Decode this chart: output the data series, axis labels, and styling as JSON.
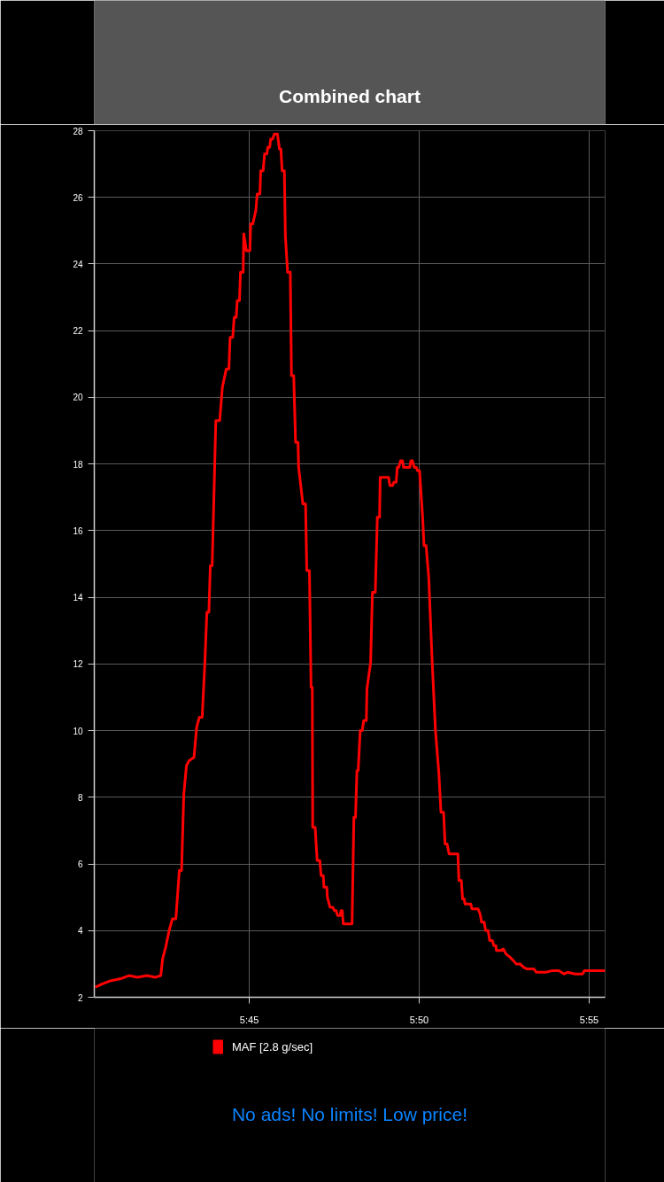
{
  "chart_data": {
    "type": "line",
    "title": "Combined chart",
    "annotations": [
      "No ads! No limits! Low price!"
    ],
    "xlim": [
      5.674,
      5.9245
    ],
    "xticks": [
      {
        "value": 5.75,
        "label": "5:45"
      },
      {
        "value": 5.8333,
        "label": "5:50"
      },
      {
        "value": 5.9167,
        "label": "5:55"
      }
    ],
    "ylim": [
      2,
      28
    ],
    "yticks": [
      2,
      4,
      6,
      8,
      10,
      12,
      14,
      16,
      18,
      20,
      22,
      24,
      26,
      28
    ],
    "grid": true,
    "legend": "bottom",
    "x": [
      5.6745,
      5.678,
      5.6823,
      5.6866,
      5.691,
      5.6953,
      5.6997,
      5.704,
      5.7066,
      5.7075,
      5.709,
      5.7107,
      5.7123,
      5.714,
      5.7157,
      5.7168,
      5.7179,
      5.7192,
      5.7205,
      5.7229,
      5.7242,
      5.7255,
      5.7269,
      5.7282,
      5.7292,
      5.7302,
      5.7309,
      5.7318,
      5.7336,
      5.7355,
      5.7368,
      5.7387,
      5.74,
      5.7406,
      5.7419,
      5.7426,
      5.7436,
      5.7441,
      5.7452,
      5.7457,
      5.747,
      5.7473,
      5.7486,
      5.7503,
      5.7507,
      5.7517,
      5.7532,
      5.7539,
      5.7552,
      5.7556,
      5.7568,
      5.7575,
      5.7586,
      5.7591,
      5.76,
      5.7605,
      5.7614,
      5.7623,
      5.7638,
      5.7648,
      5.7655,
      5.7661,
      5.7672,
      5.7677,
      5.7688,
      5.7701,
      5.7707,
      5.7718,
      5.7727,
      5.7739,
      5.7742,
      5.7763,
      5.7776,
      5.7782,
      5.7795,
      5.7803,
      5.7809,
      5.7811,
      5.7823,
      5.7833,
      5.7846,
      5.7852,
      5.7863,
      5.7866,
      5.788,
      5.7883,
      5.7896,
      5.791,
      5.7917,
      5.7926,
      5.7933,
      5.7945,
      5.795,
      5.7956,
      5.7961,
      5.8004,
      5.8013,
      5.8021,
      5.8028,
      5.8034,
      5.8044,
      5.8054,
      5.8061,
      5.8074,
      5.8077,
      5.8095,
      5.8104,
      5.8118,
      5.8128,
      5.8139,
      5.8142,
      5.8183,
      5.819,
      5.8202,
      5.8209,
      5.822,
      5.8226,
      5.8233,
      5.8242,
      5.8251,
      5.8257,
      5.8287,
      5.8293,
      5.83,
      5.8309,
      5.8319,
      5.8325,
      5.8335,
      5.835,
      5.8357,
      5.8367,
      5.838,
      5.8397,
      5.8413,
      5.843,
      5.844,
      5.8453,
      5.846,
      5.847,
      5.848,
      5.8523,
      5.8528,
      5.854,
      5.8546,
      5.8554,
      5.8558,
      5.8586,
      5.8592,
      5.8622,
      5.8632,
      5.8639,
      5.8652,
      5.8659,
      5.8671,
      5.8679,
      5.8692,
      5.8699,
      5.8709,
      5.8712,
      5.8732,
      5.8746,
      5.8759,
      5.8779,
      5.8795,
      5.8809,
      5.8828,
      5.8845,
      5.8862,
      5.8895,
      5.8908,
      5.8955,
      5.8988,
      5.9018,
      5.9044,
      5.9061,
      5.9098,
      5.9134,
      5.9144,
      5.9245
    ],
    "series": [
      {
        "name": "MAF [2.8 g/sec]",
        "color": "#ff0000",
        "values": [
          2.3,
          2.4,
          2.5,
          2.55,
          2.65,
          2.6,
          2.65,
          2.6,
          2.65,
          3.15,
          3.5,
          4.0,
          4.35,
          4.35,
          5.8,
          5.8,
          8.1,
          8.95,
          9.1,
          9.2,
          10.1,
          10.4,
          10.4,
          12.0,
          13.55,
          13.55,
          14.95,
          14.95,
          19.3,
          19.3,
          20.3,
          20.85,
          20.85,
          21.8,
          21.8,
          22.4,
          22.4,
          22.9,
          22.9,
          23.75,
          23.75,
          24.9,
          24.4,
          24.4,
          25.2,
          25.2,
          25.6,
          26.1,
          26.1,
          26.8,
          26.8,
          27.3,
          27.3,
          27.5,
          27.5,
          27.75,
          27.75,
          27.9,
          27.9,
          27.45,
          27.45,
          26.8,
          26.8,
          24.85,
          23.75,
          23.75,
          20.65,
          20.65,
          18.65,
          18.65,
          17.9,
          16.8,
          16.8,
          14.8,
          14.8,
          11.3,
          11.3,
          7.1,
          7.1,
          6.1,
          6.1,
          5.65,
          5.65,
          5.3,
          5.3,
          5.0,
          4.7,
          4.7,
          4.6,
          4.6,
          4.45,
          4.45,
          4.6,
          4.6,
          4.2,
          4.2,
          7.4,
          7.4,
          8.8,
          8.8,
          10.0,
          10.0,
          10.3,
          10.3,
          11.25,
          12.05,
          14.15,
          14.15,
          16.4,
          16.4,
          17.6,
          17.6,
          17.35,
          17.35,
          17.45,
          17.45,
          17.9,
          17.9,
          18.1,
          18.1,
          17.9,
          17.9,
          18.1,
          18.1,
          17.9,
          17.9,
          17.8,
          17.8,
          16.4,
          15.55,
          15.55,
          14.6,
          12.05,
          10.0,
          8.7,
          7.55,
          7.55,
          6.6,
          6.6,
          6.3,
          6.3,
          5.5,
          5.5,
          4.95,
          4.95,
          4.8,
          4.8,
          4.65,
          4.65,
          4.5,
          4.25,
          4.25,
          4.0,
          4.0,
          3.7,
          3.7,
          3.55,
          3.55,
          3.4,
          3.4,
          3.45,
          3.3,
          3.2,
          3.1,
          3.0,
          3.0,
          2.9,
          2.85,
          2.85,
          2.75,
          2.75,
          2.8,
          2.8,
          2.7,
          2.75,
          2.7,
          2.7,
          2.8,
          2.8
        ]
      }
    ]
  }
}
